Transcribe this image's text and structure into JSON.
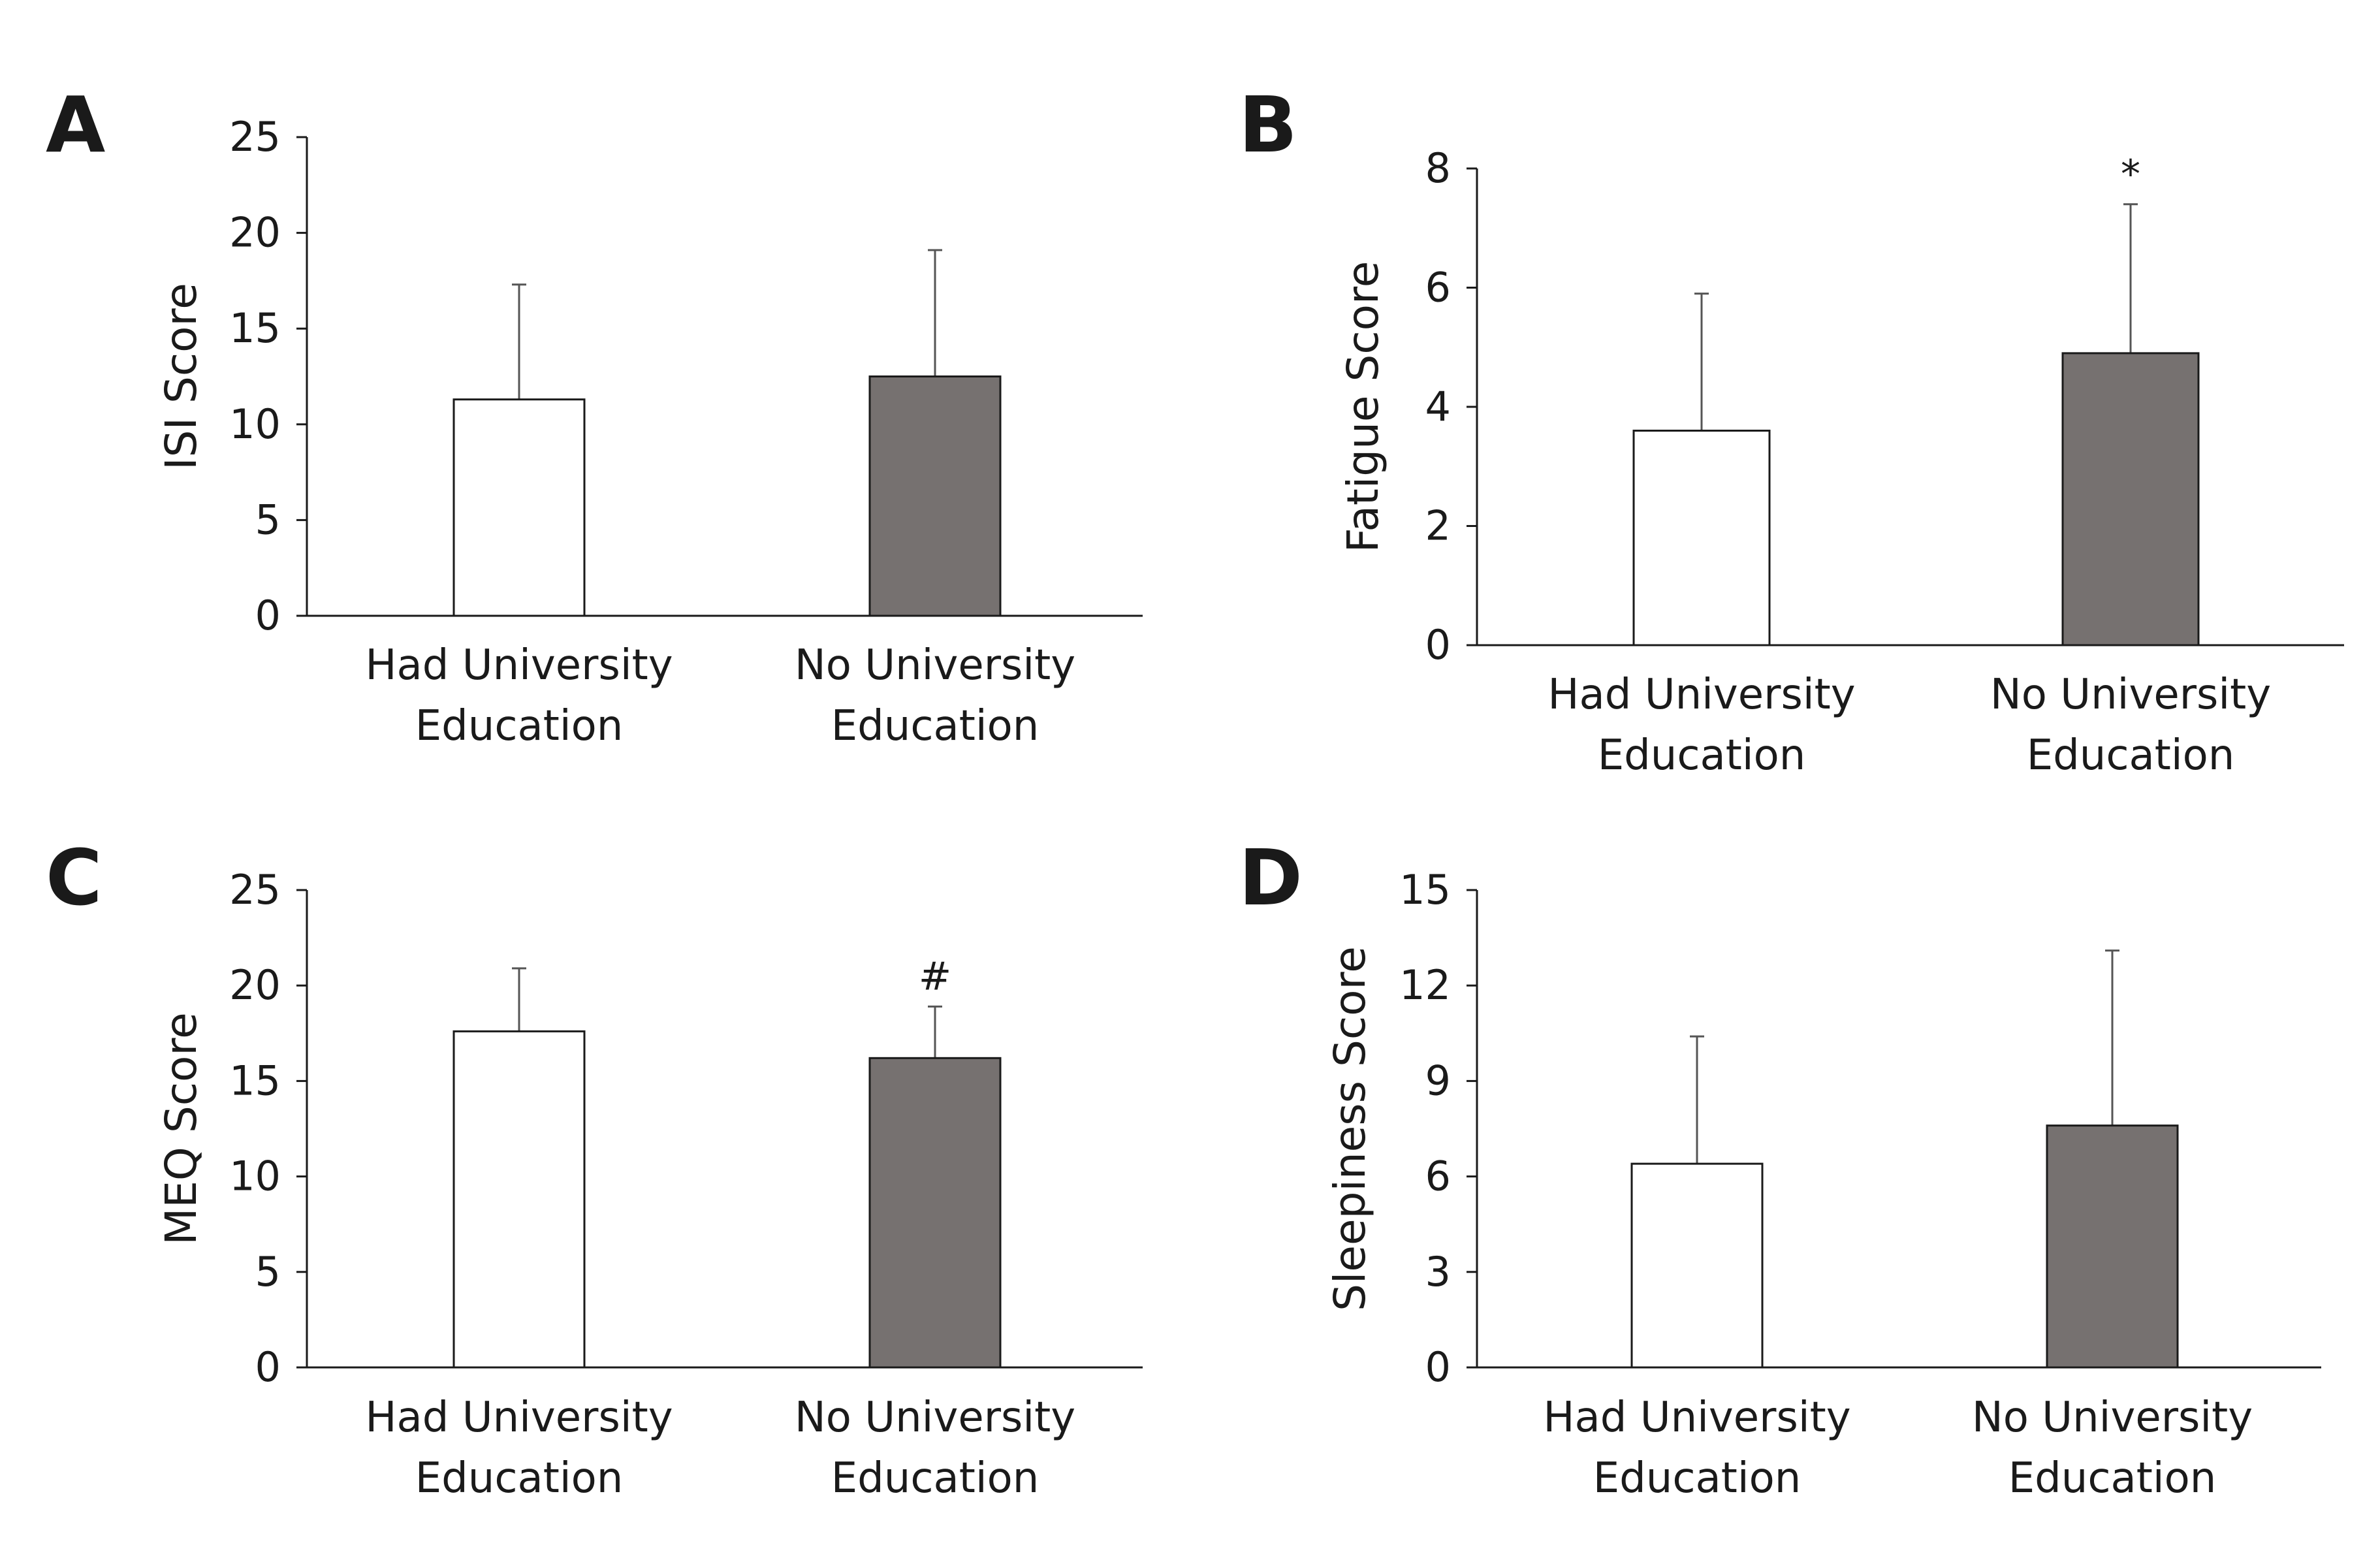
{
  "colors": {
    "bar_had": "#ffffff",
    "bar_no": "#767170",
    "axis": "#1a1a1a",
    "error_bar": "#555555"
  },
  "chart_data": [
    {
      "type": "bar",
      "panel": "A",
      "ylabel": "ISI Score",
      "ylim": [
        0,
        25
      ],
      "yticks": [
        0,
        5,
        10,
        15,
        20,
        25
      ],
      "categories": [
        [
          "Had University",
          "Education"
        ],
        [
          "No University",
          "Education"
        ]
      ],
      "values": [
        11.3,
        12.5
      ],
      "errors": [
        6.0,
        6.6
      ],
      "annotations": [
        "",
        ""
      ]
    },
    {
      "type": "bar",
      "panel": "B",
      "ylabel": "Fatigue Score",
      "ylim": [
        0,
        8
      ],
      "yticks": [
        0,
        2,
        4,
        6,
        8
      ],
      "categories": [
        [
          "Had University",
          "Education"
        ],
        [
          "No University",
          "Education"
        ]
      ],
      "values": [
        3.6,
        4.9
      ],
      "errors": [
        2.3,
        2.5
      ],
      "annotations": [
        "",
        "*"
      ]
    },
    {
      "type": "bar",
      "panel": "C",
      "ylabel": "MEQ Score",
      "ylim": [
        0,
        25
      ],
      "yticks": [
        0,
        5,
        10,
        15,
        20,
        25
      ],
      "categories": [
        [
          "Had University",
          "Education"
        ],
        [
          "No University",
          "Education"
        ]
      ],
      "values": [
        17.6,
        16.2
      ],
      "errors": [
        3.3,
        2.7
      ],
      "annotations": [
        "",
        "#"
      ]
    },
    {
      "type": "bar",
      "panel": "D",
      "ylabel": "Sleepiness Score",
      "ylim": [
        0,
        15
      ],
      "yticks": [
        0,
        3,
        6,
        9,
        12,
        15
      ],
      "categories": [
        [
          "Had University",
          "Education"
        ],
        [
          "No University",
          "Education"
        ]
      ],
      "values": [
        6.4,
        7.6
      ],
      "errors": [
        4.0,
        5.5
      ],
      "annotations": [
        "",
        ""
      ]
    }
  ]
}
